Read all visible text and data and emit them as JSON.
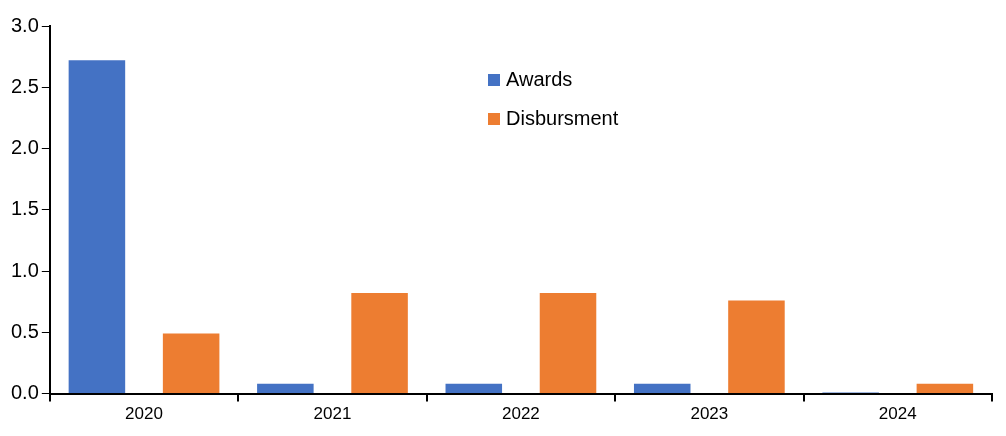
{
  "chart_data": {
    "type": "bar",
    "categories": [
      "2020",
      "2021",
      "2022",
      "2023",
      "2024"
    ],
    "series": [
      {
        "name": "Awards",
        "color": "#4472c4",
        "values": [
          2.72,
          0.08,
          0.08,
          0.08,
          0.01
        ]
      },
      {
        "name": "Disbursment",
        "color": "#ed7d31",
        "values": [
          0.49,
          0.82,
          0.82,
          0.76,
          0.08
        ]
      }
    ],
    "ylim": [
      0,
      3
    ],
    "yticks": [
      {
        "value": 0,
        "label": "0.0"
      },
      {
        "value": 0.5,
        "label": "0.5"
      },
      {
        "value": 1,
        "label": "1.0"
      },
      {
        "value": 1.5,
        "label": "1.5"
      },
      {
        "value": 2,
        "label": "2.0"
      },
      {
        "value": 2.5,
        "label": "2.5"
      },
      {
        "value": 3,
        "label": "3.0"
      }
    ],
    "grid": false,
    "legend": "top"
  }
}
